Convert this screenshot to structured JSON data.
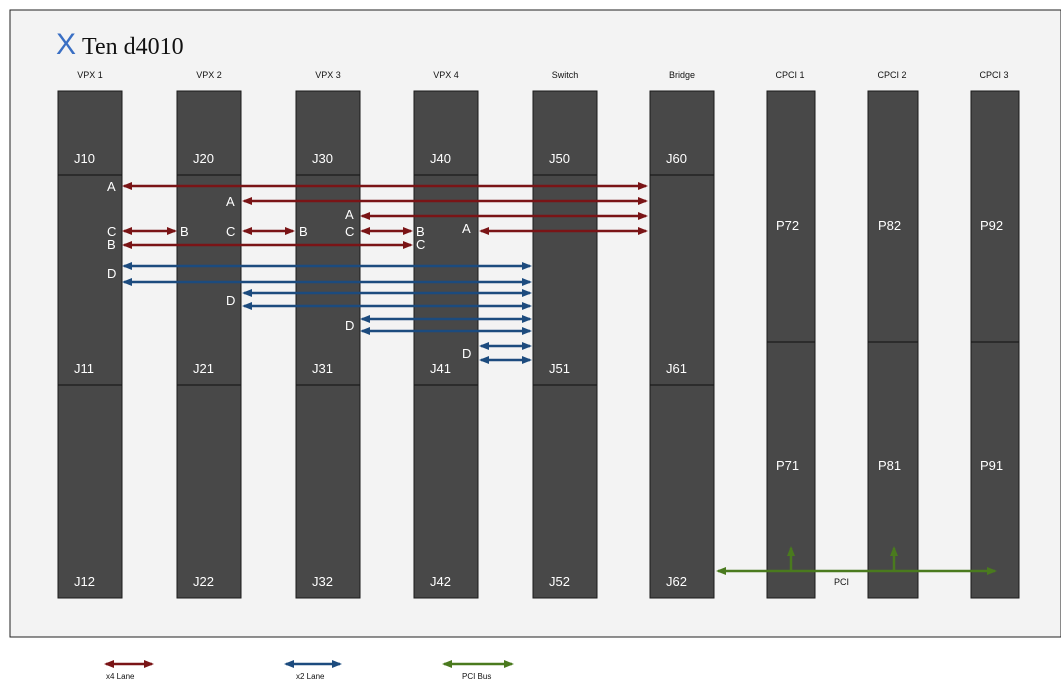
{
  "title": {
    "prefix": "X",
    "name": "Ten d4010"
  },
  "colors": {
    "x4": "#7a1416",
    "x2": "#1c4b7e",
    "pci": "#4a7a1e",
    "slot": "#484848",
    "panel": "#f3f3f3"
  },
  "slots": [
    {
      "header": "VPX 1",
      "sections": [
        "J10",
        "J11",
        "J12"
      ]
    },
    {
      "header": "VPX 2",
      "sections": [
        "J20",
        "J21",
        "J22"
      ]
    },
    {
      "header": "VPX 3",
      "sections": [
        "J30",
        "J31",
        "J32"
      ]
    },
    {
      "header": "VPX 4",
      "sections": [
        "J40",
        "J41",
        "J42"
      ]
    },
    {
      "header": "Switch",
      "sections": [
        "J50",
        "J51",
        "J52"
      ]
    },
    {
      "header": "Bridge",
      "sections": [
        "J60",
        "J61",
        "J62"
      ]
    },
    {
      "header": "CPCI 1",
      "sections": [
        "P72",
        "P71"
      ]
    },
    {
      "header": "CPCI 2",
      "sections": [
        "P82",
        "P81"
      ]
    },
    {
      "header": "CPCI 3",
      "sections": [
        "P92",
        "P91"
      ]
    }
  ],
  "port_letters": [
    "A",
    "A",
    "A",
    "A",
    "C",
    "B",
    "C",
    "B",
    "C",
    "B",
    "B",
    "C",
    "D",
    "D",
    "D",
    "D"
  ],
  "pci_label": "PCI",
  "legend": [
    {
      "label": "x4 Lane",
      "color": "x4"
    },
    {
      "label": "x2 Lane",
      "color": "x2"
    },
    {
      "label": "PCI Bus",
      "color": "pci"
    }
  ]
}
